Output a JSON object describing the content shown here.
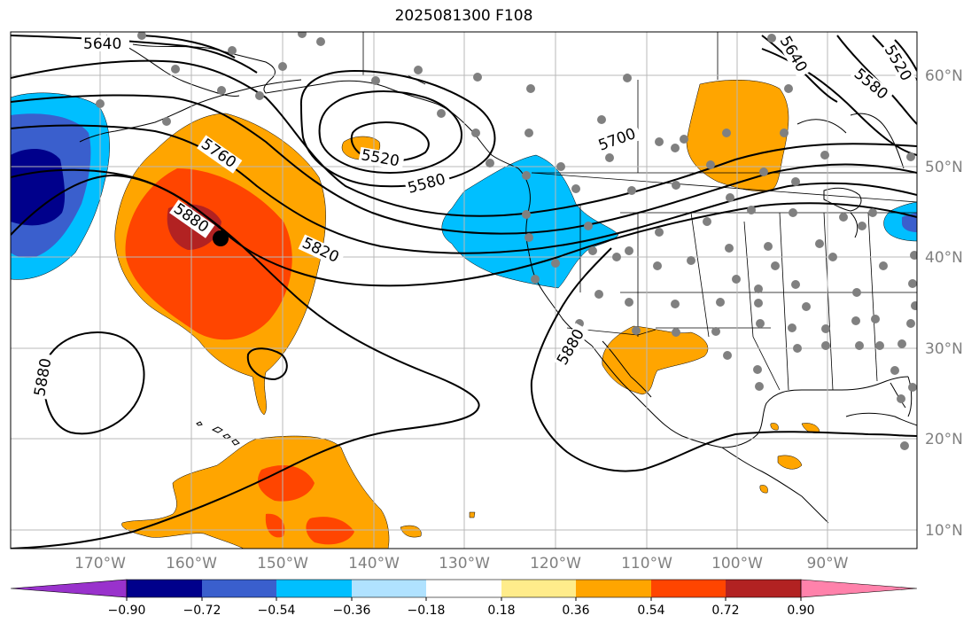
{
  "map": {
    "title": "2025081300 F108",
    "lon_labels": [
      "170°W",
      "160°W",
      "150°W",
      "140°W",
      "130°W",
      "120°W",
      "110°W",
      "100°W",
      "90°W"
    ],
    "lat_labels": [
      "60°N",
      "50°N",
      "40°N",
      "30°N",
      "20°N",
      "10°N"
    ],
    "contour_labels": [
      "5640",
      "5760",
      "5880",
      "5820",
      "5520",
      "5580",
      "5700",
      "5880",
      "5880",
      "5580",
      "5520",
      "5640"
    ],
    "colorbar": {
      "tick_labels": [
        "−0.90",
        "−0.72",
        "−0.54",
        "−0.36",
        "−0.18",
        "0.18",
        "0.36",
        "0.54",
        "0.72",
        "0.90"
      ],
      "colors": [
        "#9932CC",
        "#00008B",
        "#3A5FCD",
        "#00BFFF",
        "#B0E2FF",
        "#FFFFFF",
        "#FFEC8B",
        "#FFA500",
        "#FF4500",
        "#B22222",
        "#FF82AB"
      ]
    },
    "palette": {
      "strong_negative": "#00008B",
      "moderate_negative": "#3A5FCD",
      "weak_negative": "#00BFFF",
      "weak_positive": "#FFA500",
      "moderate_positive": "#FF4500",
      "strong_positive": "#B22222",
      "station_marker": "#808080",
      "target_marker": "#000000"
    }
  }
}
